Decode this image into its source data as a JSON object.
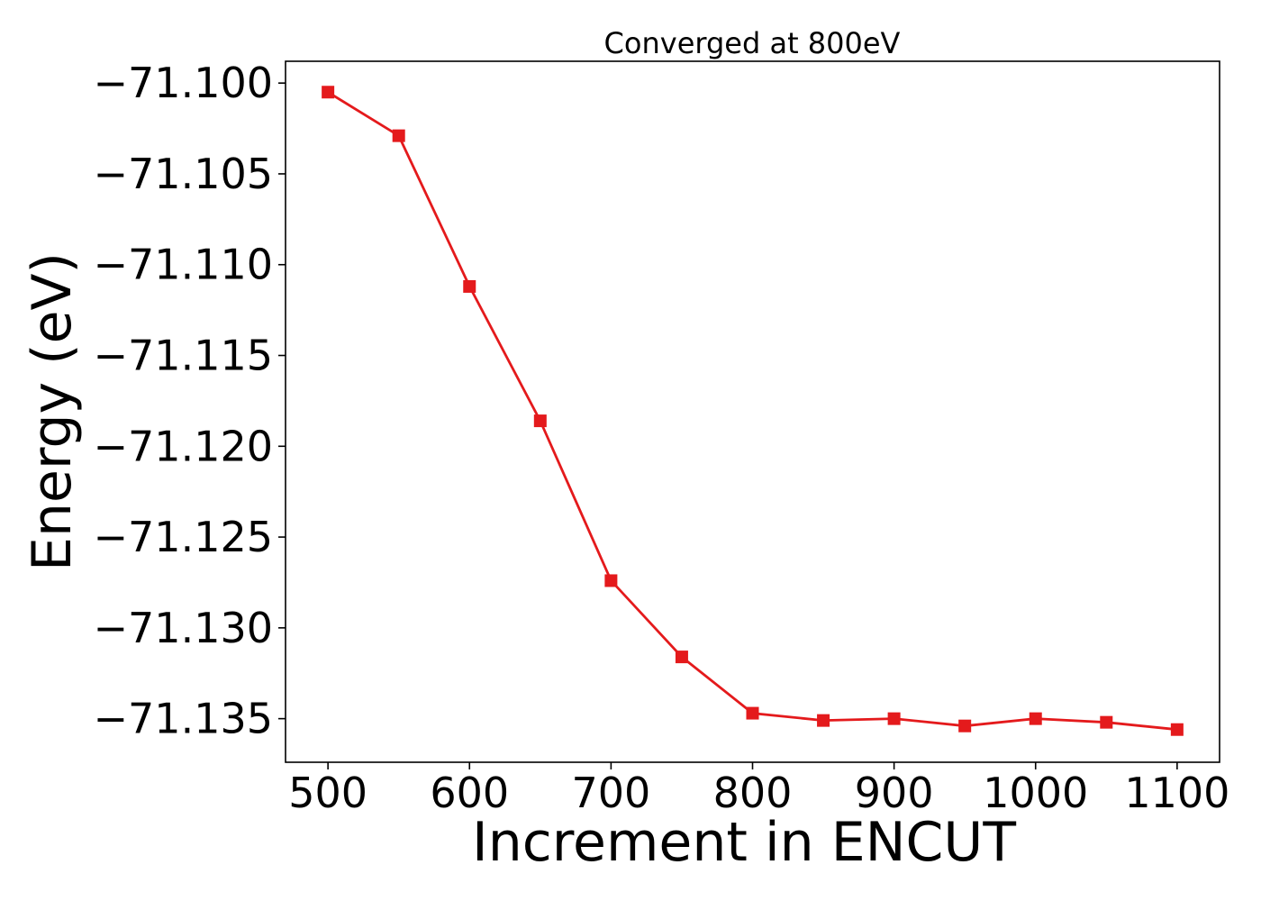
{
  "chart_data": {
    "type": "line",
    "title": "Converged at 800eV",
    "xlabel": "Increment in ENCUT",
    "ylabel": "Energy (eV)",
    "xlim": [
      470,
      1130
    ],
    "ylim": [
      -71.1374,
      -71.0988
    ],
    "xticks": [
      500,
      600,
      700,
      800,
      900,
      1000,
      1100
    ],
    "xtick_labels": [
      "500",
      "600",
      "700",
      "800",
      "900",
      "1000",
      "1100"
    ],
    "yticks": [
      -71.1,
      -71.105,
      -71.11,
      -71.115,
      -71.12,
      -71.125,
      -71.13,
      -71.135
    ],
    "ytick_labels": [
      "−71.100",
      "−71.105",
      "−71.110",
      "−71.115",
      "−71.120",
      "−71.125",
      "−71.130",
      "−71.135"
    ],
    "grid": false,
    "series": [
      {
        "color": "#e41a1c",
        "marker": "square",
        "x": [
          500,
          550,
          600,
          650,
          700,
          750,
          800,
          850,
          900,
          950,
          1000,
          1050,
          1100
        ],
        "y": [
          -71.1005,
          -71.1029,
          -71.1112,
          -71.1186,
          -71.1274,
          -71.1316,
          -71.1347,
          -71.1351,
          -71.135,
          -71.1354,
          -71.135,
          -71.1352,
          -71.1356
        ]
      }
    ]
  }
}
